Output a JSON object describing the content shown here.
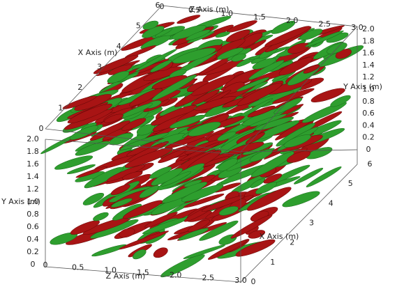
{
  "axes": {
    "z_top": {
      "title": "Z Axis (m)",
      "ticks": [
        "0",
        "0.5",
        "1.0",
        "1.5",
        "2.0",
        "2.5",
        "3.0"
      ]
    },
    "x_top": {
      "title": "X Axis (m)",
      "ticks": [
        "0",
        "1",
        "2",
        "3",
        "4",
        "5",
        "6"
      ]
    },
    "y_right": {
      "title": "Y Axis (m)",
      "ticks": [
        "0",
        "0.2",
        "0.4",
        "0.6",
        "0.8",
        "1.0",
        "1.2",
        "1.4",
        "1.6",
        "1.8",
        "2.0"
      ]
    },
    "y_left": {
      "title": "Y Axis (m)",
      "ticks": [
        "0",
        "0.2",
        "0.4",
        "0.6",
        "0.8",
        "1.0",
        "1.2",
        "1.4",
        "1.6",
        "1.8",
        "2.0"
      ]
    },
    "z_bottom": {
      "title": "Z Axis (m)",
      "ticks": [
        "0",
        "0.5",
        "1.0",
        "1.5",
        "2.0",
        "2.5",
        "3.0"
      ]
    },
    "x_bottom": {
      "title": "X Axis (m)",
      "ticks": [
        "0",
        "1",
        "2",
        "3",
        "4",
        "5",
        "6"
      ]
    }
  }
}
